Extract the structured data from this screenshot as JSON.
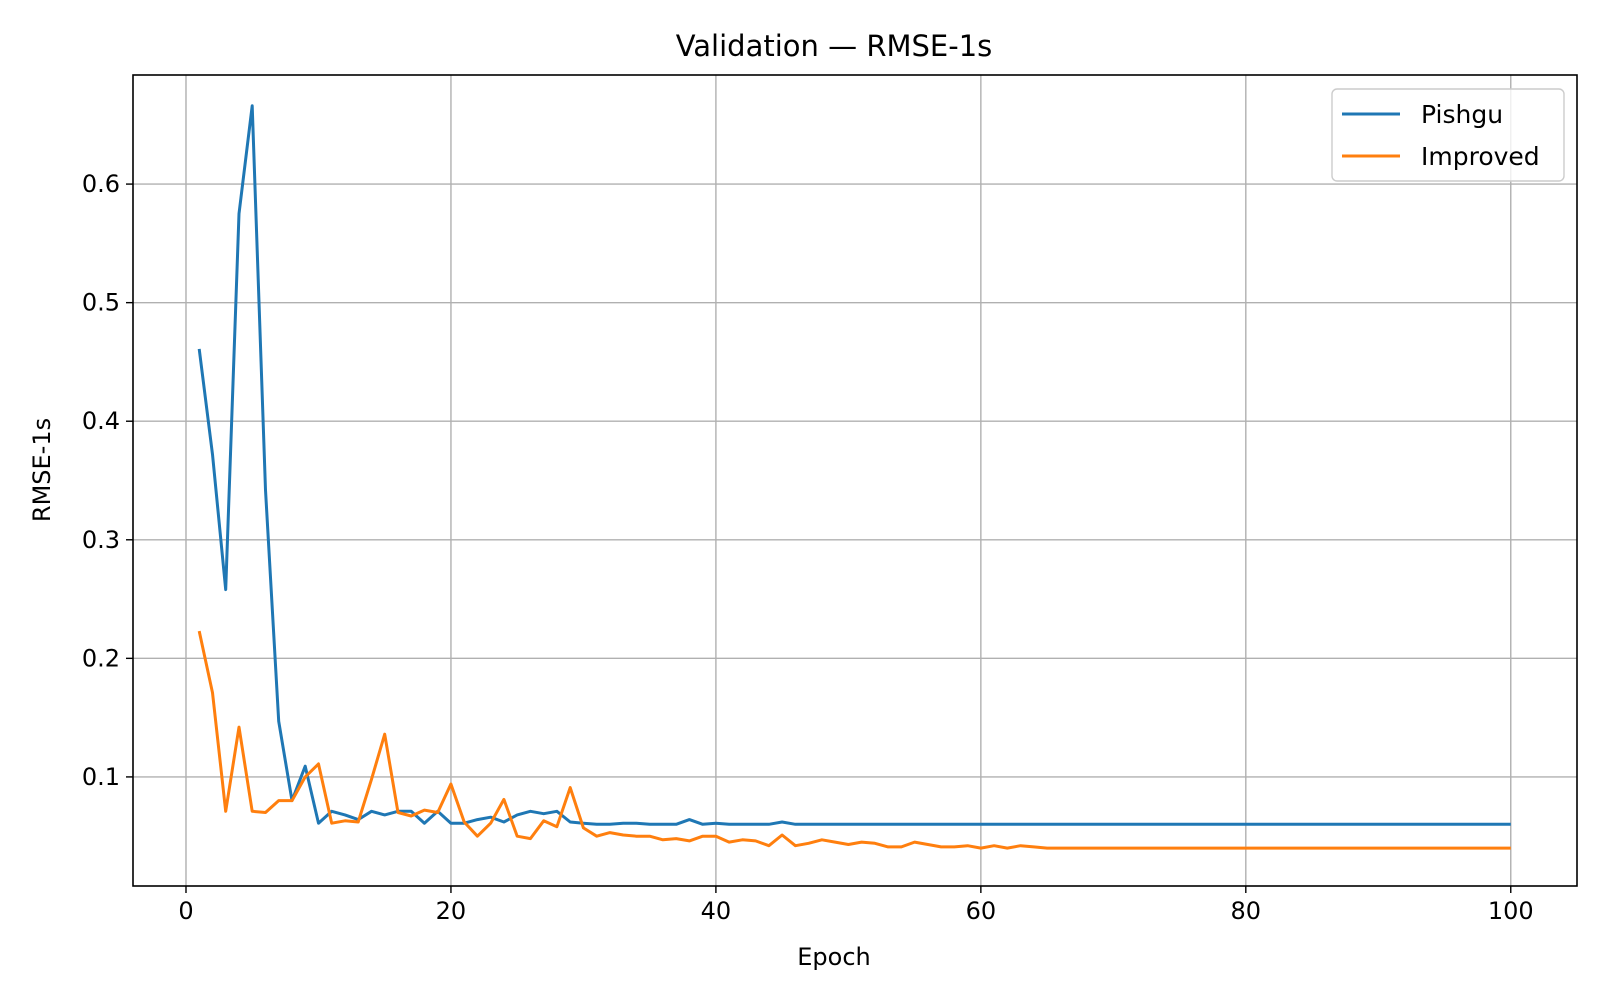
{
  "chart_data": {
    "type": "line",
    "title": "Validation — RMSE-1s",
    "xlabel": "Epoch",
    "ylabel": "RMSE-1s",
    "xlim": [
      -4,
      105
    ],
    "ylim": [
      0.008,
      0.692
    ],
    "xticks": [
      0,
      20,
      40,
      60,
      80,
      100
    ],
    "xtick_labels": [
      "0",
      "20",
      "40",
      "60",
      "80",
      "100"
    ],
    "yticks": [
      0.1,
      0.2,
      0.3,
      0.4,
      0.5,
      0.6
    ],
    "ytick_labels": [
      "0.1",
      "0.2",
      "0.3",
      "0.4",
      "0.5",
      "0.6"
    ],
    "grid": true,
    "legend_position": "top-right",
    "series": [
      {
        "name": "Pishgu",
        "color": "#1f77b4",
        "x": [
          1,
          2,
          3,
          4,
          5,
          6,
          7,
          8,
          9,
          10,
          11,
          12,
          13,
          14,
          15,
          16,
          17,
          18,
          19,
          20,
          21,
          22,
          23,
          24,
          25,
          26,
          27,
          28,
          29,
          30,
          31,
          32,
          33,
          34,
          35,
          36,
          37,
          38,
          39,
          40,
          41,
          42,
          43,
          44,
          45,
          46,
          47,
          48,
          49,
          50,
          51,
          52,
          53,
          54,
          55,
          56,
          57,
          58,
          59,
          60,
          61,
          62,
          63,
          64,
          65,
          66,
          67,
          68,
          69,
          70,
          71,
          72,
          73,
          74,
          75,
          76,
          77,
          78,
          79,
          80,
          81,
          82,
          83,
          84,
          85,
          86,
          87,
          88,
          89,
          90,
          91,
          92,
          93,
          94,
          95,
          96,
          97,
          98,
          99,
          100
        ],
        "values": [
          0.461,
          0.372,
          0.258,
          0.575,
          0.666,
          0.342,
          0.147,
          0.08,
          0.109,
          0.061,
          0.071,
          0.068,
          0.064,
          0.071,
          0.068,
          0.071,
          0.071,
          0.061,
          0.071,
          0.061,
          0.061,
          0.064,
          0.066,
          0.062,
          0.068,
          0.071,
          0.069,
          0.071,
          0.062,
          0.061,
          0.06,
          0.06,
          0.061,
          0.061,
          0.06,
          0.06,
          0.06,
          0.064,
          0.06,
          0.061,
          0.06,
          0.06,
          0.06,
          0.06,
          0.062,
          0.06,
          0.06,
          0.06,
          0.06,
          0.06,
          0.06,
          0.06,
          0.06,
          0.06,
          0.06,
          0.06,
          0.06,
          0.06,
          0.06,
          0.06,
          0.06,
          0.06,
          0.06,
          0.06,
          0.06,
          0.06,
          0.06,
          0.06,
          0.06,
          0.06,
          0.06,
          0.06,
          0.06,
          0.06,
          0.06,
          0.06,
          0.06,
          0.06,
          0.06,
          0.06,
          0.06,
          0.06,
          0.06,
          0.06,
          0.06,
          0.06,
          0.06,
          0.06,
          0.06,
          0.06,
          0.06,
          0.06,
          0.06,
          0.06,
          0.06,
          0.06,
          0.06,
          0.06,
          0.06,
          0.06
        ]
      },
      {
        "name": "Improved",
        "color": "#ff7f0e",
        "x": [
          1,
          2,
          3,
          4,
          5,
          6,
          7,
          8,
          9,
          10,
          11,
          12,
          13,
          14,
          15,
          16,
          17,
          18,
          19,
          20,
          21,
          22,
          23,
          24,
          25,
          26,
          27,
          28,
          29,
          30,
          31,
          32,
          33,
          34,
          35,
          36,
          37,
          38,
          39,
          40,
          41,
          42,
          43,
          44,
          45,
          46,
          47,
          48,
          49,
          50,
          51,
          52,
          53,
          54,
          55,
          56,
          57,
          58,
          59,
          60,
          61,
          62,
          63,
          64,
          65,
          66,
          67,
          68,
          69,
          70,
          71,
          72,
          73,
          74,
          75,
          76,
          77,
          78,
          79,
          80,
          81,
          82,
          83,
          84,
          85,
          86,
          87,
          88,
          89,
          90,
          91,
          92,
          93,
          94,
          95,
          96,
          97,
          98,
          99,
          100
        ],
        "values": [
          0.223,
          0.171,
          0.071,
          0.142,
          0.071,
          0.07,
          0.08,
          0.08,
          0.1,
          0.111,
          0.061,
          0.063,
          0.062,
          0.098,
          0.136,
          0.07,
          0.067,
          0.072,
          0.07,
          0.094,
          0.062,
          0.05,
          0.061,
          0.081,
          0.05,
          0.048,
          0.063,
          0.058,
          0.091,
          0.057,
          0.05,
          0.053,
          0.051,
          0.05,
          0.05,
          0.047,
          0.048,
          0.046,
          0.05,
          0.05,
          0.045,
          0.047,
          0.046,
          0.042,
          0.051,
          0.042,
          0.044,
          0.047,
          0.045,
          0.043,
          0.045,
          0.044,
          0.041,
          0.041,
          0.045,
          0.043,
          0.041,
          0.041,
          0.042,
          0.04,
          0.042,
          0.04,
          0.042,
          0.041,
          0.04,
          0.04,
          0.04,
          0.04,
          0.04,
          0.04,
          0.04,
          0.04,
          0.04,
          0.04,
          0.04,
          0.04,
          0.04,
          0.04,
          0.04,
          0.04,
          0.04,
          0.04,
          0.04,
          0.04,
          0.04,
          0.04,
          0.04,
          0.04,
          0.04,
          0.04,
          0.04,
          0.04,
          0.04,
          0.04,
          0.04,
          0.04,
          0.04,
          0.04,
          0.04,
          0.04
        ]
      }
    ]
  }
}
